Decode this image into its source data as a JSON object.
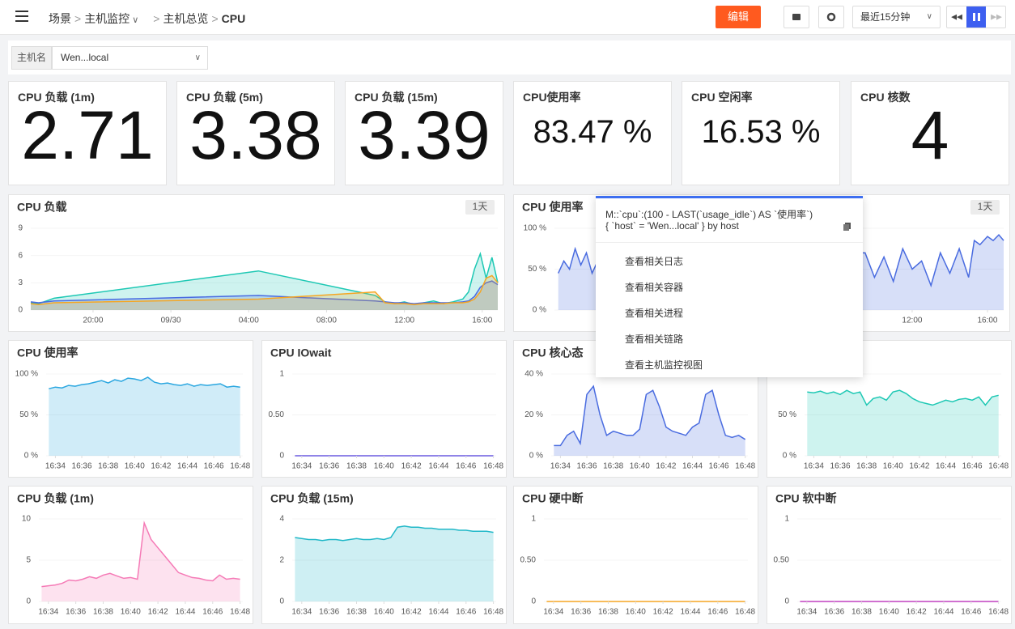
{
  "header": {
    "breadcrumb": [
      "场景",
      "主机监控",
      "主机总览",
      "CPU"
    ],
    "edit": "编辑",
    "time_range": "最近15分钟"
  },
  "filter": {
    "label": "主机名",
    "value": "Wen...local"
  },
  "stats": [
    {
      "title": "CPU 负载 (1m)",
      "value": 2.71
    },
    {
      "title": "CPU 负载 (5m)",
      "value": 3.38
    },
    {
      "title": "CPU 负载 (15m)",
      "value": 3.39
    },
    {
      "title": "CPU使用率",
      "value": 83.47,
      "value_label": "83.47 %"
    },
    {
      "title": "CPU 空闲率",
      "value": 16.53,
      "value_label": "16.53 %"
    },
    {
      "title": "CPU 核数",
      "value": 4
    }
  ],
  "chart_data": [
    {
      "type": "area",
      "title": "CPU 负载",
      "badge": "1天",
      "ylim": [
        0,
        9
      ],
      "yticks": [
        0,
        3,
        6,
        9
      ],
      "xlim": [
        16.8,
        40.8
      ],
      "xticks": [
        {
          "value": 20,
          "label": "20:00"
        },
        {
          "value": 24,
          "label": "09/30"
        },
        {
          "value": 28,
          "label": "04:00"
        },
        {
          "value": 32,
          "label": "08:00"
        },
        {
          "value": 36,
          "label": "12:00"
        },
        {
          "value": 40,
          "label": "16:00"
        }
      ],
      "x": [
        16.8,
        17.2,
        17.6,
        18,
        28.5,
        34.5,
        35,
        35.5,
        36,
        36.5,
        37,
        37.5,
        38,
        38.5,
        39,
        39.3,
        39.6,
        39.9,
        40.2,
        40.5,
        40.8
      ],
      "series": [
        {
          "color": "#1ec8b4",
          "values": [
            0.8,
            0.7,
            1.0,
            1.3,
            4.3,
            1.6,
            0.9,
            0.7,
            0.9,
            0.6,
            0.8,
            1.0,
            0.7,
            0.9,
            1.2,
            2.0,
            4.5,
            6.2,
            3.5,
            5.8,
            3.0
          ]
        },
        {
          "color": "#4a6ce0",
          "values": [
            0.9,
            0.8,
            0.9,
            1.0,
            1.6,
            1.0,
            0.9,
            0.8,
            0.8,
            0.7,
            0.8,
            0.8,
            0.8,
            0.8,
            0.9,
            1.0,
            1.5,
            2.5,
            3.0,
            3.2,
            2.8
          ]
        },
        {
          "color": "#f5a623",
          "values": [
            0.7,
            0.6,
            0.7,
            0.8,
            1.2,
            2.0,
            0.8,
            0.7,
            0.7,
            0.6,
            0.7,
            0.7,
            0.7,
            0.8,
            0.8,
            0.9,
            1.2,
            2.0,
            3.5,
            3.8,
            3.0
          ]
        }
      ]
    },
    {
      "type": "area",
      "title": "CPU 使用率",
      "badge": "1天",
      "ylim": [
        0,
        100
      ],
      "yticks": [
        {
          "value": 0,
          "label": "0 %"
        },
        {
          "value": 50,
          "label": "50 %"
        },
        {
          "value": 100,
          "label": "100 %"
        }
      ],
      "xlim": [
        17,
        40.86
      ],
      "xticks": [
        {
          "value": 36,
          "label": "12:00"
        },
        {
          "value": 40,
          "label": "16:00"
        }
      ],
      "x": [
        17.2,
        17.5,
        17.8,
        18.1,
        18.4,
        18.7,
        19.0,
        19.3,
        33.5,
        34,
        34.5,
        35,
        35.5,
        36,
        36.5,
        37,
        37.5,
        38,
        38.5,
        39,
        39.3,
        39.6,
        40,
        40.3,
        40.6,
        40.86
      ],
      "series": [
        {
          "color": "#4a6ce0",
          "values": [
            45,
            60,
            50,
            75,
            55,
            70,
            45,
            60,
            70,
            40,
            65,
            35,
            75,
            50,
            60,
            30,
            70,
            45,
            75,
            40,
            85,
            80,
            90,
            85,
            92,
            85
          ]
        }
      ]
    },
    {
      "type": "area",
      "title": "CPU 使用率",
      "ylim": [
        0,
        100
      ],
      "yticks": [
        {
          "value": 0,
          "label": "0 %"
        },
        {
          "value": 50,
          "label": "50 %"
        },
        {
          "value": 100,
          "label": "100 %"
        }
      ],
      "xlim": [
        33.3,
        48.2
      ],
      "xticks": [
        {
          "value": 34,
          "label": "16:34"
        },
        {
          "value": 36,
          "label": "16:36"
        },
        {
          "value": 38,
          "label": "16:38"
        },
        {
          "value": 40,
          "label": "16:40"
        },
        {
          "value": 42,
          "label": "16:42"
        },
        {
          "value": 44,
          "label": "16:44"
        },
        {
          "value": 46,
          "label": "16:46"
        },
        {
          "value": 48,
          "label": "16:48"
        }
      ],
      "x": [
        33.5,
        34,
        34.5,
        35,
        35.5,
        36,
        36.5,
        37,
        37.5,
        38,
        38.5,
        39,
        39.5,
        40,
        40.5,
        41,
        41.5,
        42,
        42.5,
        43,
        43.5,
        44,
        44.5,
        45,
        45.5,
        46,
        46.5,
        47,
        47.5,
        48
      ],
      "series": [
        {
          "color": "#2ba7e0",
          "values": [
            82,
            84,
            83,
            86,
            85,
            87,
            88,
            90,
            92,
            89,
            93,
            91,
            95,
            94,
            92,
            96,
            90,
            88,
            89,
            87,
            86,
            88,
            85,
            87,
            86,
            87,
            88,
            84,
            85,
            84
          ]
        }
      ]
    },
    {
      "type": "area",
      "title": "CPU IOwait",
      "ylim": [
        0,
        1
      ],
      "yticks": [
        0,
        {
          "value": 0.5,
          "label": "0.50"
        },
        1
      ],
      "xlim": [
        33.3,
        48.2
      ],
      "xticks": [
        {
          "value": 34,
          "label": "16:34"
        },
        {
          "value": 36,
          "label": "16:36"
        },
        {
          "value": 38,
          "label": "16:38"
        },
        {
          "value": 40,
          "label": "16:40"
        },
        {
          "value": 42,
          "label": "16:42"
        },
        {
          "value": 44,
          "label": "16:44"
        },
        {
          "value": 46,
          "label": "16:46"
        },
        {
          "value": 48,
          "label": "16:48"
        }
      ],
      "x": [
        33.5,
        34,
        34.5,
        35,
        35.5,
        36,
        36.5,
        37,
        37.5,
        38,
        38.5,
        39,
        39.5,
        40,
        40.5,
        41,
        41.5,
        42,
        42.5,
        43,
        43.5,
        44,
        44.5,
        45,
        45.5,
        46,
        46.5,
        47,
        47.5,
        48
      ],
      "series": [
        {
          "color": "#6b5be0",
          "values": [
            0,
            0,
            0,
            0,
            0,
            0,
            0,
            0,
            0,
            0,
            0,
            0,
            0,
            0,
            0,
            0,
            0,
            0,
            0,
            0,
            0,
            0,
            0,
            0,
            0,
            0,
            0,
            0,
            0,
            0
          ]
        }
      ]
    },
    {
      "type": "area",
      "title": "CPU 核心态",
      "ylim": [
        0,
        40
      ],
      "yticks": [
        {
          "value": 0,
          "label": "0 %"
        },
        {
          "value": 20,
          "label": "20 %"
        },
        {
          "value": 40,
          "label": "40 %"
        }
      ],
      "xlim": [
        33.3,
        48.2
      ],
      "xticks": [
        {
          "value": 34,
          "label": "16:34"
        },
        {
          "value": 36,
          "label": "16:36"
        },
        {
          "value": 38,
          "label": "16:38"
        },
        {
          "value": 40,
          "label": "16:40"
        },
        {
          "value": 42,
          "label": "16:42"
        },
        {
          "value": 44,
          "label": "16:44"
        },
        {
          "value": 46,
          "label": "16:46"
        },
        {
          "value": 48,
          "label": "16:48"
        }
      ],
      "x": [
        33.5,
        34,
        34.5,
        35,
        35.5,
        36,
        36.5,
        37,
        37.5,
        38,
        38.5,
        39,
        39.5,
        40,
        40.5,
        41,
        41.5,
        42,
        42.5,
        43,
        43.5,
        44,
        44.5,
        45,
        45.5,
        46,
        46.5,
        47,
        47.5,
        48
      ],
      "series": [
        {
          "color": "#4a6ce0",
          "values": [
            5,
            5,
            10,
            12,
            6,
            30,
            34,
            20,
            10,
            12,
            11,
            10,
            10,
            13,
            30,
            32,
            24,
            14,
            12,
            11,
            10,
            14,
            16,
            30,
            32,
            20,
            10,
            9,
            10,
            8
          ]
        }
      ]
    },
    {
      "type": "area",
      "ylim": [
        0,
        100
      ],
      "yticks": [
        {
          "value": 0,
          "label": "0 %"
        },
        {
          "value": 50,
          "label": "50 %"
        },
        {
          "value": 100,
          "label": "100 %"
        }
      ],
      "xlim": [
        33.3,
        48.2
      ],
      "xticks": [
        {
          "value": 34,
          "label": "16:34"
        },
        {
          "value": 36,
          "label": "16:36"
        },
        {
          "value": 38,
          "label": "16:38"
        },
        {
          "value": 40,
          "label": "16:40"
        },
        {
          "value": 42,
          "label": "16:42"
        },
        {
          "value": 44,
          "label": "16:44"
        },
        {
          "value": 46,
          "label": "16:46"
        },
        {
          "value": 48,
          "label": "16:48"
        }
      ],
      "x": [
        33.5,
        34,
        34.5,
        35,
        35.5,
        36,
        36.5,
        37,
        37.5,
        38,
        38.5,
        39,
        39.5,
        40,
        40.5,
        41,
        41.5,
        42,
        42.5,
        43,
        43.5,
        44,
        44.5,
        45,
        45.5,
        46,
        46.5,
        47,
        47.5,
        48
      ],
      "series": [
        {
          "color": "#1ec8b4",
          "values": [
            78,
            77,
            79,
            76,
            78,
            75,
            80,
            76,
            78,
            62,
            70,
            72,
            68,
            78,
            80,
            76,
            70,
            66,
            64,
            62,
            65,
            68,
            66,
            69,
            70,
            68,
            72,
            62,
            72,
            74
          ]
        }
      ]
    },
    {
      "type": "area",
      "title": "CPU 负载 (1m)",
      "ylim": [
        0,
        10
      ],
      "yticks": [
        0,
        5,
        10
      ],
      "xlim": [
        33.3,
        48.2
      ],
      "xticks": [
        {
          "value": 34,
          "label": "16:34"
        },
        {
          "value": 36,
          "label": "16:36"
        },
        {
          "value": 38,
          "label": "16:38"
        },
        {
          "value": 40,
          "label": "16:40"
        },
        {
          "value": 42,
          "label": "16:42"
        },
        {
          "value": 44,
          "label": "16:44"
        },
        {
          "value": 46,
          "label": "16:46"
        },
        {
          "value": 48,
          "label": "16:48"
        }
      ],
      "x": [
        33.5,
        34,
        34.5,
        35,
        35.5,
        36,
        36.5,
        37,
        37.5,
        38,
        38.5,
        39,
        39.5,
        40,
        40.5,
        41,
        41.5,
        42,
        42.5,
        43,
        43.5,
        44,
        44.5,
        45,
        45.5,
        46,
        46.5,
        47,
        47.5,
        48
      ],
      "series": [
        {
          "color": "#f57ab6",
          "values": [
            1.8,
            1.9,
            2.0,
            2.2,
            2.6,
            2.5,
            2.7,
            3.0,
            2.8,
            3.2,
            3.4,
            3.1,
            2.8,
            2.9,
            2.7,
            9.5,
            7.5,
            6.5,
            5.5,
            4.5,
            3.5,
            3.2,
            2.9,
            2.8,
            2.6,
            2.5,
            3.2,
            2.7,
            2.8,
            2.7
          ]
        }
      ]
    },
    {
      "type": "area",
      "title": "CPU 负载 (15m)",
      "ylim": [
        0,
        4
      ],
      "yticks": [
        0,
        2,
        4
      ],
      "xlim": [
        33.3,
        48.2
      ],
      "xticks": [
        {
          "value": 34,
          "label": "16:34"
        },
        {
          "value": 36,
          "label": "16:36"
        },
        {
          "value": 38,
          "label": "16:38"
        },
        {
          "value": 40,
          "label": "16:40"
        },
        {
          "value": 42,
          "label": "16:42"
        },
        {
          "value": 44,
          "label": "16:44"
        },
        {
          "value": 46,
          "label": "16:46"
        },
        {
          "value": 48,
          "label": "16:48"
        }
      ],
      "x": [
        33.5,
        34,
        34.5,
        35,
        35.5,
        36,
        36.5,
        37,
        37.5,
        38,
        38.5,
        39,
        39.5,
        40,
        40.5,
        41,
        41.5,
        42,
        42.5,
        43,
        43.5,
        44,
        44.5,
        45,
        45.5,
        46,
        46.5,
        47,
        47.5,
        48
      ],
      "series": [
        {
          "color": "#20b8c8",
          "values": [
            3.1,
            3.05,
            3.0,
            3.0,
            2.95,
            3.0,
            3.0,
            2.95,
            3.0,
            3.05,
            3.0,
            3.0,
            3.05,
            3.0,
            3.1,
            3.6,
            3.65,
            3.6,
            3.6,
            3.55,
            3.55,
            3.5,
            3.5,
            3.5,
            3.45,
            3.45,
            3.4,
            3.4,
            3.4,
            3.35
          ]
        }
      ]
    },
    {
      "type": "area",
      "title": "CPU 硬中断",
      "ylim": [
        0,
        1
      ],
      "yticks": [
        0,
        {
          "value": 0.5,
          "label": "0.50"
        },
        1
      ],
      "xlim": [
        33.3,
        48.2
      ],
      "xticks": [
        {
          "value": 34,
          "label": "16:34"
        },
        {
          "value": 36,
          "label": "16:36"
        },
        {
          "value": 38,
          "label": "16:38"
        },
        {
          "value": 40,
          "label": "16:40"
        },
        {
          "value": 42,
          "label": "16:42"
        },
        {
          "value": 44,
          "label": "16:44"
        },
        {
          "value": 46,
          "label": "16:46"
        },
        {
          "value": 48,
          "label": "16:48"
        }
      ],
      "x": [
        33.5,
        34,
        34.5,
        35,
        35.5,
        36,
        36.5,
        37,
        37.5,
        38,
        38.5,
        39,
        39.5,
        40,
        40.5,
        41,
        41.5,
        42,
        42.5,
        43,
        43.5,
        44,
        44.5,
        45,
        45.5,
        46,
        46.5,
        47,
        47.5,
        48
      ],
      "series": [
        {
          "color": "#f5a623",
          "values": [
            0,
            0,
            0,
            0,
            0,
            0,
            0,
            0,
            0,
            0,
            0,
            0,
            0,
            0,
            0,
            0,
            0,
            0,
            0,
            0,
            0,
            0,
            0,
            0,
            0,
            0,
            0,
            0,
            0,
            0
          ]
        }
      ]
    },
    {
      "type": "area",
      "title": "CPU 软中断",
      "ylim": [
        0,
        1
      ],
      "yticks": [
        0,
        {
          "value": 0.5,
          "label": "0.50"
        },
        1
      ],
      "xlim": [
        33.3,
        48.2
      ],
      "xticks": [
        {
          "value": 34,
          "label": "16:34"
        },
        {
          "value": 36,
          "label": "16:36"
        },
        {
          "value": 38,
          "label": "16:38"
        },
        {
          "value": 40,
          "label": "16:40"
        },
        {
          "value": 42,
          "label": "16:42"
        },
        {
          "value": 44,
          "label": "16:44"
        },
        {
          "value": 46,
          "label": "16:46"
        },
        {
          "value": 48,
          "label": "16:48"
        }
      ],
      "x": [
        33.5,
        34,
        34.5,
        35,
        35.5,
        36,
        36.5,
        37,
        37.5,
        38,
        38.5,
        39,
        39.5,
        40,
        40.5,
        41,
        41.5,
        42,
        42.5,
        43,
        43.5,
        44,
        44.5,
        45,
        45.5,
        46,
        46.5,
        47,
        47.5,
        48
      ],
      "series": [
        {
          "color": "#c040c0",
          "values": [
            0,
            0,
            0,
            0,
            0,
            0,
            0,
            0,
            0,
            0,
            0,
            0,
            0,
            0,
            0,
            0,
            0,
            0,
            0,
            0,
            0,
            0,
            0,
            0,
            0,
            0,
            0,
            0,
            0,
            0
          ]
        }
      ]
    }
  ],
  "popup": {
    "query": [
      "M::`cpu`:(100 - LAST(`usage_idle`) AS `使用率`)",
      "{ `host` = 'Wen...local' } by host"
    ],
    "menu": [
      "查看相关日志",
      "查看相关容器",
      "查看相关进程",
      "查看相关链路",
      "查看主机监控视图"
    ]
  }
}
